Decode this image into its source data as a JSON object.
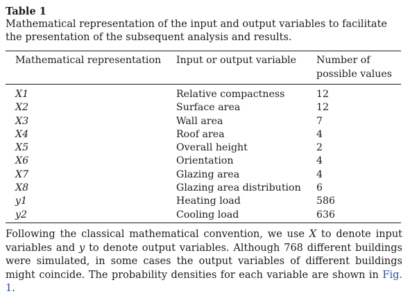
{
  "table_label": "Table 1",
  "caption": "Mathematical representation of the input and output variables to facilitate the presentation of the subsequent analysis and results.",
  "headers": {
    "col1": "Mathematical representation",
    "col2": "Input or output variable",
    "col3": "Number of possible values"
  },
  "rows": [
    {
      "symbol": "X1",
      "name": "Relative compactness",
      "count": "12"
    },
    {
      "symbol": "X2",
      "name": "Surface area",
      "count": "12"
    },
    {
      "symbol": "X3",
      "name": "Wall area",
      "count": "7"
    },
    {
      "symbol": "X4",
      "name": "Roof area",
      "count": "4"
    },
    {
      "symbol": "X5",
      "name": "Overall height",
      "count": "2"
    },
    {
      "symbol": "X6",
      "name": "Orientation",
      "count": "4"
    },
    {
      "symbol": "X7",
      "name": "Glazing area",
      "count": "4"
    },
    {
      "symbol": "X8",
      "name": "Glazing area distribution",
      "count": "6"
    },
    {
      "symbol": "y1",
      "name": "Heating load",
      "count": "586"
    },
    {
      "symbol": "y2",
      "name": "Cooling load",
      "count": "636"
    }
  ],
  "paragraph": {
    "part1": "Following the classical mathematical convention, we use ",
    "var_x": "X",
    "part2": " to denote input variables and ",
    "var_y": "y",
    "part3": " to denote output variables. Although 768 different buildings were simulated, in some cases the output variables of different buildings might coincide. The probability densities for each variable are shown in ",
    "fig_link": "Fig. 1",
    "part4": "."
  },
  "colors": {
    "text": "#1a1a1a",
    "link": "#1f4fa3"
  }
}
